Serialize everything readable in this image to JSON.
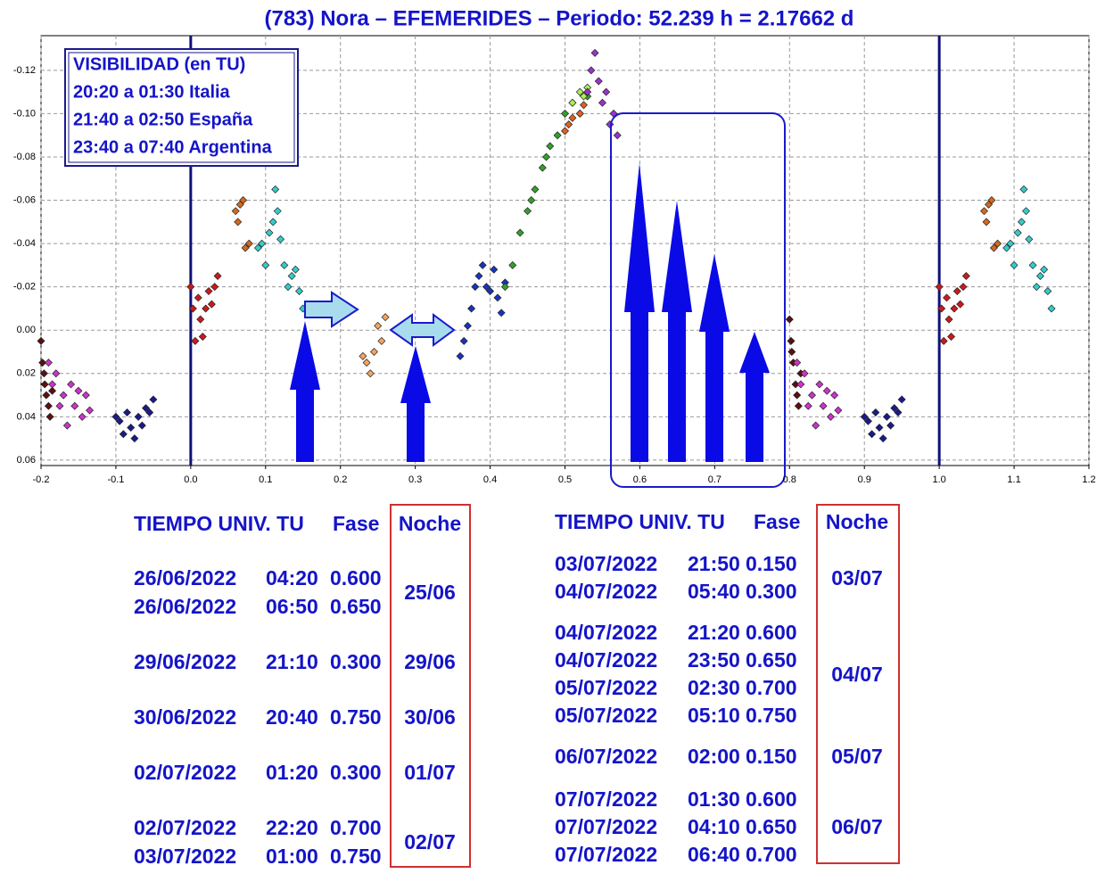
{
  "chart_data": {
    "type": "scatter",
    "title": "(783) Nora – EFEMERIDES – Periodo: 52.239 h = 2.17662 d",
    "annotations": [
      "VISIBILIDAD (en TU)",
      "20:20 a 01:30 Italia",
      "21:40 a 02:50 España",
      "23:40 a 07:40 Argentina"
    ],
    "xlim": [
      -0.2,
      1.2
    ],
    "ylim": [
      0.0625,
      -0.136
    ],
    "xticks": [
      -0.2,
      -0.1,
      {
        "value": 0,
        "label": "0.0"
      },
      0.1,
      0.2,
      0.3,
      0.4,
      0.5,
      0.6,
      0.7,
      0.8,
      0.9,
      {
        "value": 1,
        "label": "1.0"
      },
      1.1,
      1.2
    ],
    "yticks": [
      -0.12,
      {
        "value": -0.1,
        "label": "-0.10"
      },
      -0.08,
      -0.06,
      -0.04,
      -0.02,
      {
        "value": 0,
        "label": "0.00"
      },
      0.02,
      0.04,
      0.06
    ],
    "grid": true,
    "vlines": [
      0,
      1
    ],
    "series": [
      {
        "color": "#5c0f0f",
        "x": [
          -0.2,
          -0.198,
          -0.196,
          -0.193,
          -0.19,
          -0.188,
          -0.185,
          -0.195,
          0.8,
          0.802,
          0.805,
          0.808,
          0.81,
          0.812,
          0.815,
          0.803
        ],
        "values": [
          0.005,
          0.015,
          0.02,
          0.03,
          0.035,
          0.04,
          0.028,
          0.025,
          -0.005,
          0.005,
          0.015,
          0.025,
          0.03,
          0.035,
          0.02,
          0.01
        ]
      },
      {
        "color": "#cc33cc",
        "x": [
          -0.19,
          -0.185,
          -0.18,
          -0.175,
          -0.17,
          -0.165,
          -0.16,
          -0.155,
          -0.15,
          -0.145,
          -0.14,
          -0.135,
          0.81,
          0.815,
          0.82,
          0.825,
          0.83,
          0.835,
          0.84,
          0.845,
          0.85,
          0.855,
          0.86,
          0.865
        ],
        "values": [
          0.015,
          0.025,
          0.02,
          0.035,
          0.03,
          0.044,
          0.025,
          0.035,
          0.028,
          0.04,
          0.03,
          0.037,
          0.015,
          0.025,
          0.02,
          0.035,
          0.03,
          0.044,
          0.025,
          0.035,
          0.028,
          0.04,
          0.03,
          0.037
        ]
      },
      {
        "color": "#1a1a8c",
        "x": [
          -0.1,
          -0.095,
          -0.09,
          -0.085,
          -0.08,
          -0.075,
          -0.07,
          -0.065,
          -0.06,
          -0.055,
          -0.05,
          0.9,
          0.905,
          0.91,
          0.915,
          0.92,
          0.925,
          0.93,
          0.935,
          0.94,
          0.945,
          0.95
        ],
        "values": [
          0.04,
          0.042,
          0.048,
          0.038,
          0.045,
          0.05,
          0.04,
          0.044,
          0.036,
          0.038,
          0.032,
          0.04,
          0.042,
          0.048,
          0.038,
          0.045,
          0.05,
          0.04,
          0.044,
          0.036,
          0.038,
          0.032
        ]
      },
      {
        "color": "#cc1a1a",
        "x": [
          0,
          0.003,
          0.006,
          0.01,
          0.013,
          0.016,
          0.02,
          0.024,
          0.028,
          0.032,
          0.036,
          1,
          1.003,
          1.006,
          1.01,
          1.013,
          1.016,
          1.02,
          1.024,
          1.028,
          1.032,
          1.036
        ],
        "values": [
          -0.02,
          -0.01,
          0.005,
          -0.015,
          -0.005,
          0.003,
          -0.01,
          -0.018,
          -0.012,
          -0.02,
          -0.025,
          -0.02,
          -0.01,
          0.005,
          -0.015,
          -0.005,
          0.003,
          -0.01,
          -0.018,
          -0.012,
          -0.02,
          -0.025
        ]
      },
      {
        "color": "#d2691e",
        "x": [
          0.06,
          0.063,
          0.066,
          0.07,
          0.073,
          0.078,
          1.06,
          1.063,
          1.066,
          1.07,
          1.073,
          1.078
        ],
        "values": [
          -0.055,
          -0.05,
          -0.058,
          -0.06,
          -0.038,
          -0.04,
          -0.055,
          -0.05,
          -0.058,
          -0.06,
          -0.038,
          -0.04
        ]
      },
      {
        "color": "#33cccc",
        "x": [
          0.09,
          0.095,
          0.1,
          0.105,
          0.11,
          0.113,
          0.116,
          0.12,
          0.125,
          0.13,
          0.135,
          0.14,
          0.145,
          0.15,
          1.09,
          1.095,
          1.1,
          1.105,
          1.11,
          1.113,
          1.116,
          1.12,
          1.125,
          1.13,
          1.135,
          1.14,
          1.145,
          1.15
        ],
        "values": [
          -0.038,
          -0.04,
          -0.03,
          -0.045,
          -0.05,
          -0.065,
          -0.055,
          -0.042,
          -0.03,
          -0.02,
          -0.025,
          -0.028,
          -0.018,
          -0.01,
          -0.038,
          -0.04,
          -0.03,
          -0.045,
          -0.05,
          -0.065,
          -0.055,
          -0.042,
          -0.03,
          -0.02,
          -0.025,
          -0.028,
          -0.018,
          -0.01
        ]
      },
      {
        "color": "#f4a460",
        "x": [
          0.23,
          0.235,
          0.24,
          0.245,
          0.25,
          0.255,
          0.26
        ],
        "values": [
          0.012,
          0.015,
          0.02,
          0.01,
          -0.002,
          0.005,
          -0.006
        ]
      },
      {
        "color": "#1a33bb",
        "x": [
          0.36,
          0.365,
          0.37,
          0.375,
          0.38,
          0.385,
          0.39,
          0.395,
          0.4,
          0.405,
          0.41,
          0.415,
          0.42
        ],
        "values": [
          0.012,
          0.005,
          -0.002,
          -0.01,
          -0.02,
          -0.025,
          -0.03,
          -0.02,
          -0.018,
          -0.028,
          -0.015,
          -0.008,
          -0.022
        ]
      },
      {
        "color": "#33a02c",
        "x": [
          0.42,
          0.43,
          0.44,
          0.45,
          0.46,
          0.47,
          0.48,
          0.49,
          0.5,
          0.51,
          0.52,
          0.53,
          0.455,
          0.475
        ],
        "values": [
          -0.02,
          -0.03,
          -0.045,
          -0.055,
          -0.065,
          -0.075,
          -0.085,
          -0.09,
          -0.1,
          -0.105,
          -0.1,
          -0.108,
          -0.06,
          -0.08
        ]
      },
      {
        "color": "#e06020",
        "x": [
          0.5,
          0.505,
          0.51,
          0.52,
          0.525
        ],
        "values": [
          -0.092,
          -0.095,
          -0.098,
          -0.1,
          -0.104
        ]
      },
      {
        "color": "#aaee55",
        "x": [
          0.51,
          0.52,
          0.525,
          0.53
        ],
        "values": [
          -0.105,
          -0.11,
          -0.108,
          -0.112
        ]
      },
      {
        "color": "#9933cc",
        "x": [
          0.53,
          0.535,
          0.54,
          0.545,
          0.55,
          0.555,
          0.56,
          0.565,
          0.57
        ],
        "values": [
          -0.11,
          -0.12,
          -0.128,
          -0.115,
          -0.105,
          -0.11,
          -0.095,
          -0.1,
          -0.09
        ]
      }
    ]
  },
  "tables": [
    {
      "header": [
        "TIEMPO UNIV. TU",
        "Fase",
        "Noche"
      ],
      "groups": [
        {
          "rows": [
            [
              "26/06/2022",
              "04:20",
              "0.600"
            ],
            [
              "26/06/2022",
              "06:50",
              "0.650"
            ]
          ],
          "night": "25/06"
        },
        {
          "rows": [
            [
              "29/06/2022",
              "21:10",
              "0.300"
            ]
          ],
          "night": "29/06"
        },
        {
          "rows": [
            [
              "30/06/2022",
              "20:40",
              "0.750"
            ]
          ],
          "night": "30/06"
        },
        {
          "rows": [
            [
              "02/07/2022",
              "01:20",
              "0.300"
            ]
          ],
          "night": "01/07"
        },
        {
          "rows": [
            [
              "02/07/2022",
              "22:20",
              "0.700"
            ],
            [
              "03/07/2022",
              "01:00",
              "0.750"
            ]
          ],
          "night": "02/07"
        }
      ]
    },
    {
      "header": [
        "TIEMPO UNIV. TU",
        "Fase",
        "Noche"
      ],
      "groups": [
        {
          "rows": [
            [
              "03/07/2022",
              "21:50",
              "0.150"
            ],
            [
              "04/07/2022",
              "05:40",
              "0.300"
            ]
          ],
          "night": "03/07"
        },
        {
          "rows": [
            [
              "04/07/2022",
              "21:20",
              "0.600"
            ],
            [
              "04/07/2022",
              "23:50",
              "0.650"
            ],
            [
              "05/07/2022",
              "02:30",
              "0.700"
            ],
            [
              "05/07/2022",
              "05:10",
              "0.750"
            ]
          ],
          "night": "04/07"
        },
        {
          "rows": [
            [
              "06/07/2022",
              "02:00",
              "0.150"
            ]
          ],
          "night": "05/07"
        },
        {
          "rows": [
            [
              "07/07/2022",
              "01:30",
              "0.600"
            ],
            [
              "07/07/2022",
              "04:10",
              "0.650"
            ],
            [
              "07/07/2022",
              "06:40",
              "0.700"
            ]
          ],
          "night": "06/07"
        }
      ]
    }
  ]
}
